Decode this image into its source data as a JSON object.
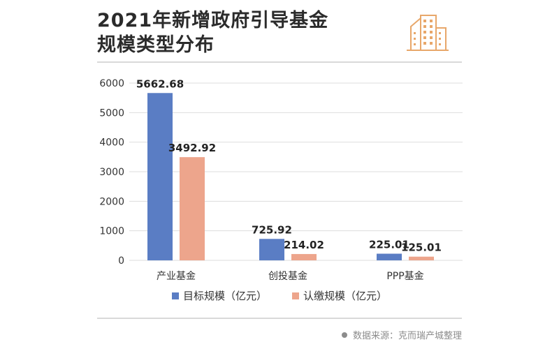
{
  "title": {
    "line1": "2021年新增政府引导基金",
    "line2": "规模类型分布"
  },
  "source": "数据来源：克而瑞产城整理",
  "colors": {
    "series1": "#5a7dc4",
    "series2": "#eda58c",
    "accent": "#e8a76a",
    "grid": "#dddddd",
    "text": "#333333"
  },
  "logo_icon": "buildings-icon",
  "chart_data": {
    "type": "bar",
    "categories": [
      "产业基金",
      "创投基金",
      "PPP基金"
    ],
    "series": [
      {
        "name": "目标规模（亿元）",
        "values": [
          5662.68,
          725.92,
          225.01
        ],
        "labels": [
          "5662.68",
          "725.92",
          "225.01"
        ]
      },
      {
        "name": "认缴规模（亿元）",
        "values": [
          3492.92,
          214.02,
          125.01
        ],
        "labels": [
          "3492.92",
          "214.02",
          "125.01"
        ]
      }
    ],
    "ylim": [
      0,
      6000
    ],
    "yticks": [
      "0",
      "1000",
      "2000",
      "3000",
      "4000",
      "5000",
      "6000"
    ],
    "grid": true,
    "legend_position": "bottom"
  }
}
